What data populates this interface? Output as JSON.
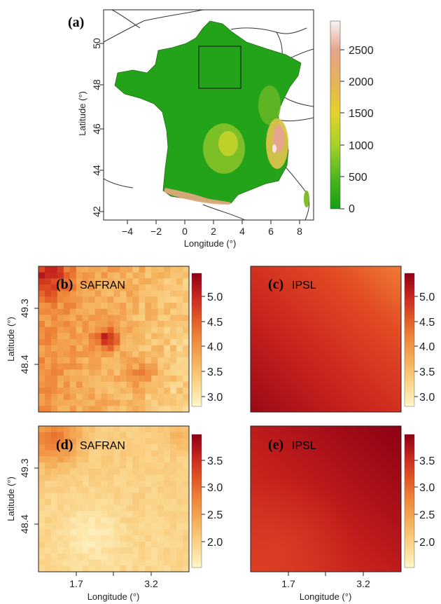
{
  "map": {
    "panel_label": "(a)",
    "x_axis_label": "Longitude (°)",
    "y_axis_label": "Latitude (°)",
    "x_ticks": [
      "−4",
      "−2",
      "0",
      "2",
      "4",
      "6",
      "8"
    ],
    "y_ticks": [
      "42",
      "44",
      "46",
      "48",
      "50"
    ],
    "colorbar_ticks": [
      "0",
      "500",
      "1000",
      "1500",
      "2000",
      "2500"
    ],
    "colorbar_colors": [
      "#11a011",
      "#4fb81f",
      "#a6d22a",
      "#e3d22a",
      "#e6b25a",
      "#e6a58c",
      "#f5f5f5"
    ]
  },
  "grids": [
    {
      "id": "b",
      "panel_label": "(b)",
      "model": "SAFRAN",
      "colorbar_ticks": [
        "3.0",
        "3.5",
        "4.0",
        "4.5",
        "5.0"
      ]
    },
    {
      "id": "c",
      "panel_label": "(c)",
      "model": "IPSL",
      "colorbar_ticks": [
        "3.0",
        "3.5",
        "4.0",
        "4.5",
        "5.0"
      ]
    },
    {
      "id": "d",
      "panel_label": "(d)",
      "model": "SAFRAN",
      "colorbar_ticks": [
        "2.0",
        "2.5",
        "3.0",
        "3.5"
      ]
    },
    {
      "id": "e",
      "panel_label": "(e)",
      "model": "IPSL",
      "colorbar_ticks": [
        "2.0",
        "2.5",
        "3.0",
        "3.5"
      ]
    }
  ],
  "grid_axes": {
    "x_ticks": [
      "1.7",
      "3.2"
    ],
    "y_ticks": [
      "49.3",
      "48.4"
    ],
    "x_axis_label": "Longitude (°)",
    "y_axis_label": "Latitude (°)"
  },
  "heat_colors": [
    "#fff6c8",
    "#fbd890",
    "#f5b45e",
    "#ef8a3c",
    "#e15a26",
    "#c8261e",
    "#8e0014"
  ]
}
